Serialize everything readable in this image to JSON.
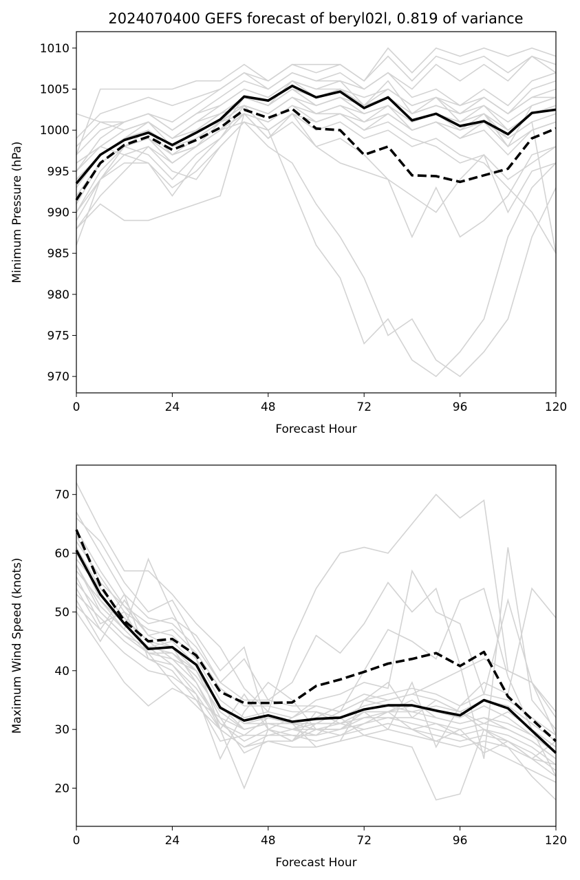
{
  "title": "2024070400 GEFS forecast of beryl02l, 0.819 of variance",
  "colors": {
    "members": "#d3d3d3",
    "mean": "#000000",
    "weighted": "#000000"
  },
  "chart_data": [
    {
      "type": "line",
      "xlabel": "Forecast Hour",
      "ylabel": "Minimum Pressure (hPa)",
      "xlim": [
        0,
        120
      ],
      "ylim": [
        968,
        1012
      ],
      "xticks": [
        0,
        24,
        48,
        72,
        96,
        120
      ],
      "yticks": [
        970,
        975,
        980,
        985,
        990,
        995,
        1000,
        1005,
        1010
      ],
      "x": [
        0,
        6,
        12,
        18,
        24,
        30,
        36,
        42,
        48,
        54,
        60,
        66,
        72,
        78,
        84,
        90,
        96,
        102,
        108,
        114,
        120
      ],
      "series": [
        {
          "style": "solid",
          "values": [
            993.5,
            997.0,
            998.8,
            999.7,
            998.2,
            999.7,
            1001.3,
            1004.1,
            1003.6,
            1005.4,
            1004.0,
            1004.7,
            1002.7,
            1004.0,
            1001.2,
            1002.0,
            1000.5,
            1001.1,
            999.5,
            1002.1,
            1002.5
          ]
        },
        {
          "style": "dashed",
          "values": [
            991.5,
            996.0,
            998.2,
            999.2,
            997.6,
            998.8,
            1000.3,
            1002.5,
            1001.5,
            1002.6,
            1000.2,
            1000.0,
            997.0,
            998.0,
            994.5,
            994.4,
            993.7,
            994.5,
            995.3,
            999.0,
            1000.2
          ]
        }
      ],
      "members": [
        [
          986,
          994,
          998,
          1000,
          997,
          998,
          1000,
          1004,
          1003,
          1006,
          1005,
          1006,
          1003,
          1006,
          1002,
          1004,
          1001,
          1002,
          998,
          1003,
          1004
        ],
        [
          988,
          991,
          989,
          989,
          990,
          991,
          992,
          1002,
          999,
          1002,
          998,
          996,
          995,
          994,
          987,
          993,
          987,
          989,
          992,
          997,
          998
        ],
        [
          992,
          996,
          998,
          999,
          997,
          999,
          1001,
          1002,
          999,
          1001,
          998,
          999,
          997,
          994,
          992,
          990,
          994,
          997,
          990,
          995,
          996
        ],
        [
          990,
          995,
          998,
          999,
          996,
          998,
          1000,
          1001,
          998,
          996,
          991,
          987,
          982,
          975,
          977,
          972,
          970,
          973,
          977,
          987,
          993
        ],
        [
          996,
          998,
          997,
          996,
          992,
          996,
          999,
          1003,
          1000,
          993,
          986,
          982,
          974,
          977,
          972,
          970,
          973,
          977,
          987,
          993,
          996
        ],
        [
          994,
          997,
          999,
          1001,
          999,
          1001,
          1003,
          1005,
          1004,
          1006,
          1004,
          1005,
          1003,
          1004,
          1002,
          1003,
          1002,
          1004,
          1002,
          1005,
          1006
        ],
        [
          998,
          1001,
          1001,
          1002,
          1000,
          1002,
          1004,
          1006,
          1005,
          1007,
          1006,
          1007,
          1005,
          1007,
          1004,
          1005,
          1003,
          1005,
          1003,
          1006,
          1007
        ],
        [
          997,
          1005,
          1005,
          1005,
          1005,
          1006,
          1006,
          1008,
          1006,
          1008,
          1008,
          1008,
          1006,
          1010,
          1007,
          1010,
          1009,
          1010,
          1009,
          1010,
          1009
        ],
        [
          995,
          999,
          1001,
          1002,
          1001,
          1003,
          1005,
          1007,
          1006,
          1008,
          1007,
          1008,
          1006,
          1009,
          1006,
          1009,
          1008,
          1009,
          1007,
          1009,
          1008
        ],
        [
          999,
          1002,
          1003,
          1004,
          1003,
          1004,
          1005,
          1007,
          1005,
          1007,
          1006,
          1006,
          1005,
          1007,
          1005,
          1008,
          1006,
          1008,
          1006,
          1009,
          1007
        ],
        [
          993,
          997,
          999,
          1000,
          998,
          999,
          1001,
          1003,
          1002,
          1004,
          1002,
          1003,
          1001,
          1003,
          1000,
          1001,
          999,
          1000,
          997,
          1000,
          1001
        ],
        [
          991,
          996,
          998,
          997,
          994,
          997,
          999,
          1002,
          1001,
          1003,
          1001,
          1002,
          1000,
          1001,
          999,
          998,
          996,
          997,
          994,
          996,
          998
        ],
        [
          989,
          994,
          996,
          996,
          993,
          995,
          998,
          1001,
          1000,
          1002,
          1000,
          1001,
          999,
          1000,
          998,
          999,
          997,
          996,
          993,
          990,
          985
        ],
        [
          1002,
          1001,
          1000,
          1001,
          999,
          1000,
          1002,
          1004,
          1003,
          1005,
          1003,
          1004,
          1002,
          1003,
          1001,
          1002,
          1000,
          1002,
          999,
          1001,
          985
        ],
        [
          995,
          998,
          1000,
          1001,
          998,
          1000,
          1002,
          1003,
          1002,
          1004,
          1003,
          1004,
          1002,
          1003,
          1001,
          1002,
          1001,
          1003,
          1000,
          1002,
          1003
        ],
        [
          997,
          1000,
          1001,
          1002,
          1000,
          1002,
          1003,
          1005,
          1004,
          1006,
          1005,
          1005,
          1004,
          1005,
          1003,
          1004,
          1002,
          1004,
          1002,
          1004,
          1005
        ],
        [
          988,
          992,
          995,
          998,
          996,
          998,
          1001,
          1004,
          1003,
          1005,
          1004,
          1005,
          1003,
          1005,
          1003,
          1004,
          1003,
          1004,
          1002,
          1004,
          1004
        ],
        [
          990,
          994,
          997,
          998,
          995,
          994,
          998,
          1001,
          1000,
          1002,
          1001,
          1002,
          1000,
          1002,
          1000,
          1001,
          999,
          1001,
          998,
          1000,
          1001
        ],
        [
          992,
          996,
          998,
          999,
          997,
          998,
          1000,
          1002,
          1001,
          1003,
          1002,
          1002,
          1001,
          1002,
          1000,
          1001,
          1000,
          1001,
          999,
          1001,
          1002
        ],
        [
          994,
          997,
          999,
          1000,
          998,
          1000,
          1001,
          1003,
          1002,
          1004,
          1002,
          1003,
          1002,
          1003,
          1001,
          1002,
          1001,
          1002,
          1000,
          1002,
          1003
        ],
        [
          996,
          998,
          1000,
          1001,
          999,
          1001,
          1002,
          1004,
          1003,
          1005,
          1003,
          1004,
          1003,
          1004,
          1002,
          1003,
          1002,
          1003,
          1001,
          1003,
          1004
        ]
      ]
    },
    {
      "type": "line",
      "xlabel": "Forecast Hour",
      "ylabel": "Maximum Wind Speed (knots)",
      "xlim": [
        0,
        120
      ],
      "ylim": [
        13.5,
        75
      ],
      "xticks": [
        0,
        24,
        48,
        72,
        96,
        120
      ],
      "yticks": [
        20,
        30,
        40,
        50,
        60,
        70
      ],
      "x": [
        0,
        6,
        12,
        18,
        24,
        30,
        36,
        42,
        48,
        54,
        60,
        66,
        72,
        78,
        84,
        90,
        96,
        102,
        108,
        114,
        120
      ],
      "series": [
        {
          "style": "solid",
          "values": [
            60.5,
            53.0,
            48.0,
            43.7,
            44.0,
            41.0,
            33.7,
            31.5,
            32.4,
            31.3,
            31.8,
            32.0,
            33.4,
            34.1,
            34.1,
            33.2,
            32.4,
            35.0,
            33.6,
            29.8,
            26.0
          ]
        },
        {
          "style": "dashed",
          "values": [
            64.0,
            54.5,
            48.5,
            45.0,
            45.4,
            42.6,
            36.4,
            34.5,
            34.5,
            34.6,
            37.4,
            38.5,
            39.8,
            41.2,
            42.0,
            43.0,
            40.8,
            43.2,
            35.6,
            31.7,
            28.0
          ]
        }
      ],
      "members": [
        [
          72,
          64,
          57,
          57,
          53,
          48,
          44,
          37,
          33,
          45,
          54,
          60,
          61,
          60,
          65,
          70,
          66,
          69,
          40,
          38,
          33
        ],
        [
          66,
          62,
          55,
          50,
          52,
          45,
          38,
          42,
          35,
          38,
          46,
          43,
          48,
          55,
          50,
          54,
          41,
          25,
          61,
          35,
          30
        ],
        [
          63,
          55,
          51,
          48,
          49,
          46,
          40,
          44,
          30,
          32,
          35,
          36,
          38,
          37,
          57,
          50,
          48,
          36,
          52,
          38,
          29
        ],
        [
          61,
          52,
          47,
          59,
          50,
          42,
          30,
          20,
          30,
          28,
          33,
          31,
          30,
          31,
          30,
          28,
          30,
          26,
          28,
          25,
          28
        ],
        [
          58,
          50,
          46,
          44,
          41,
          36,
          25,
          33,
          38,
          35,
          30,
          30,
          33,
          30,
          38,
          27,
          34,
          38,
          36,
          54,
          49
        ],
        [
          56,
          48,
          50,
          43,
          38,
          34,
          30,
          36,
          30,
          28,
          31,
          33,
          40,
          47,
          45,
          42,
          52,
          54,
          39,
          30,
          22
        ],
        [
          54,
          47,
          53,
          42,
          40,
          35,
          28,
          29,
          32,
          31,
          27,
          28,
          35,
          38,
          32,
          35,
          33,
          30,
          27,
          22,
          18
        ],
        [
          52,
          45,
          52,
          46,
          44,
          38,
          30,
          27,
          29,
          30,
          29,
          32,
          29,
          28,
          27,
          18,
          19,
          30,
          28,
          25,
          24
        ],
        [
          50,
          44,
          38,
          34,
          37,
          35,
          32,
          26,
          28,
          28,
          30,
          29,
          31,
          33,
          30,
          31,
          29,
          27,
          25,
          23,
          21
        ],
        [
          59,
          54,
          49,
          45,
          42,
          40,
          32,
          30,
          31,
          30,
          32,
          34,
          36,
          35,
          36,
          38,
          40,
          42,
          40,
          38,
          32
        ],
        [
          62,
          56,
          50,
          47,
          46,
          42,
          35,
          32,
          33,
          32,
          34,
          33,
          35,
          34,
          33,
          34,
          33,
          31,
          33,
          30,
          27
        ],
        [
          57,
          52,
          48,
          44,
          43,
          40,
          34,
          31,
          31,
          31,
          30,
          30,
          32,
          33,
          35,
          32,
          31,
          32,
          30,
          28,
          25
        ],
        [
          55,
          50,
          46,
          43,
          42,
          38,
          31,
          28,
          30,
          29,
          29,
          30,
          31,
          32,
          31,
          30,
          29,
          30,
          29,
          27,
          24
        ],
        [
          60,
          53,
          48,
          44,
          45,
          41,
          34,
          30,
          31,
          30,
          31,
          31,
          33,
          33,
          34,
          33,
          32,
          34,
          32,
          29,
          26
        ],
        [
          64,
          57,
          51,
          46,
          47,
          43,
          37,
          34,
          34,
          33,
          33,
          32,
          34,
          35,
          36,
          35,
          33,
          35,
          34,
          31,
          28
        ],
        [
          53,
          49,
          45,
          42,
          41,
          37,
          31,
          29,
          29,
          29,
          28,
          29,
          30,
          31,
          30,
          29,
          28,
          29,
          28,
          26,
          23
        ],
        [
          67,
          60,
          53,
          49,
          48,
          44,
          38,
          35,
          35,
          34,
          34,
          33,
          35,
          36,
          37,
          36,
          34,
          36,
          35,
          32,
          29
        ],
        [
          51,
          47,
          43,
          40,
          39,
          36,
          30,
          27,
          28,
          27,
          27,
          28,
          29,
          30,
          29,
          28,
          27,
          28,
          27,
          25,
          22
        ],
        [
          58,
          51,
          47,
          43,
          43,
          39,
          33,
          30,
          31,
          30,
          30,
          31,
          32,
          32,
          32,
          31,
          30,
          31,
          30,
          28,
          25
        ],
        [
          61,
          54,
          49,
          45,
          44,
          40,
          34,
          31,
          32,
          31,
          31,
          31,
          33,
          33,
          33,
          32,
          31,
          32,
          31,
          29,
          26
        ]
      ]
    }
  ]
}
